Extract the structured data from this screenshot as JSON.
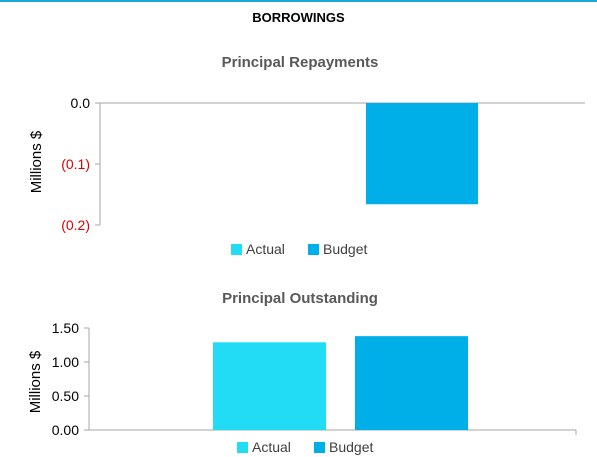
{
  "section_title": "BORROWINGS",
  "colors": {
    "actual": "#22dbf5",
    "budget": "#00aee8",
    "negative_tick": "#e00000"
  },
  "chart_data": [
    {
      "type": "bar",
      "title": "Principal Repayments",
      "ylabel": "Millions $",
      "xlabel": "",
      "ylim": [
        -0.2,
        0.0
      ],
      "yticks": [
        0.0,
        -0.1,
        -0.2
      ],
      "ytick_labels": [
        "0.0",
        "(0.1)",
        "(0.2)"
      ],
      "categories": [
        ""
      ],
      "series": [
        {
          "name": "Actual",
          "values": [
            0.0
          ]
        },
        {
          "name": "Budget",
          "values": [
            -0.166
          ]
        }
      ],
      "legend": "bottom",
      "grid": false
    },
    {
      "type": "bar",
      "title": "Principal Outstanding",
      "ylabel": "Millions $",
      "xlabel": "",
      "ylim": [
        0.0,
        1.5
      ],
      "yticks": [
        0.0,
        0.5,
        1.0,
        1.5
      ],
      "ytick_labels": [
        "0.00",
        "0.50",
        "1.00",
        "1.50"
      ],
      "categories": [
        ""
      ],
      "series": [
        {
          "name": "Actual",
          "values": [
            1.29
          ]
        },
        {
          "name": "Budget",
          "values": [
            1.38
          ]
        }
      ],
      "legend": "bottom",
      "grid": false
    }
  ]
}
